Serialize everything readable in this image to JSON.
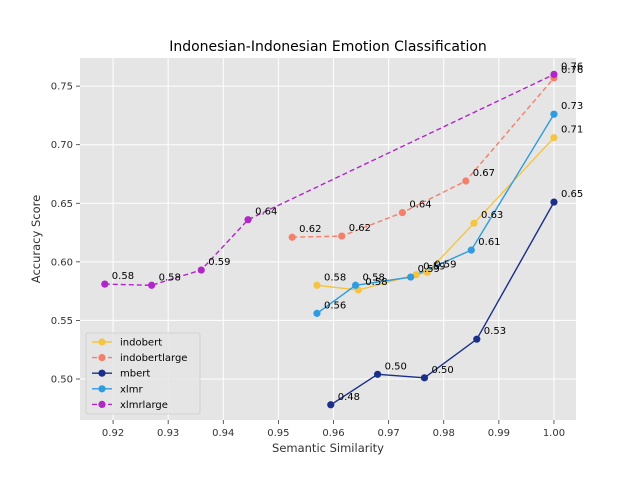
{
  "chart_data": {
    "type": "line",
    "title": "Indonesian-Indonesian Emotion Classification",
    "xlabel": "Semantic Similarity",
    "ylabel": "Accuracy Score",
    "xlim": [
      0.914,
      1.004
    ],
    "ylim": [
      0.465,
      0.774
    ],
    "xticks": [
      0.92,
      0.93,
      0.94,
      0.95,
      0.96,
      0.97,
      0.98,
      0.99,
      1.0
    ],
    "xtick_labels": [
      "0.92",
      "0.93",
      "0.94",
      "0.95",
      "0.96",
      "0.97",
      "0.98",
      "0.99",
      "1.00"
    ],
    "yticks": [
      0.5,
      0.55,
      0.6,
      0.65,
      0.7,
      0.75
    ],
    "ytick_labels": [
      "0.50",
      "0.55",
      "0.60",
      "0.65",
      "0.70",
      "0.75"
    ],
    "grid": true,
    "legend_position": "lower-left",
    "series": [
      {
        "name": "indobert",
        "color": "#f4c542",
        "dashed": false,
        "points": [
          {
            "x": 0.957,
            "y": 0.58,
            "label": "0.58"
          },
          {
            "x": 0.9645,
            "y": 0.576,
            "label": "0.58"
          },
          {
            "x": 0.975,
            "y": 0.589,
            "label": "0.59"
          },
          {
            "x": 0.977,
            "y": 0.591,
            "label": "0.59"
          },
          {
            "x": 0.9855,
            "y": 0.633,
            "label": "0.63"
          },
          {
            "x": 1.0,
            "y": 0.706,
            "label": "0.71"
          }
        ]
      },
      {
        "name": "indobertlarge",
        "color": "#f47f6b",
        "dashed": true,
        "points": [
          {
            "x": 0.9525,
            "y": 0.621,
            "label": "0.62"
          },
          {
            "x": 0.9615,
            "y": 0.622,
            "label": "0.62"
          },
          {
            "x": 0.9725,
            "y": 0.642,
            "label": "0.64"
          },
          {
            "x": 0.984,
            "y": 0.669,
            "label": "0.67"
          },
          {
            "x": 1.0,
            "y": 0.757,
            "label": "0.76"
          }
        ]
      },
      {
        "name": "mbert",
        "color": "#1b2f8a",
        "dashed": false,
        "points": [
          {
            "x": 0.9595,
            "y": 0.478,
            "label": "0.48"
          },
          {
            "x": 0.968,
            "y": 0.504,
            "label": "0.50"
          },
          {
            "x": 0.9765,
            "y": 0.501,
            "label": "0.50"
          },
          {
            "x": 0.986,
            "y": 0.534,
            "label": "0.53"
          },
          {
            "x": 1.0,
            "y": 0.651,
            "label": "0.65"
          }
        ]
      },
      {
        "name": "xlmr",
        "color": "#2f9be0",
        "dashed": false,
        "points": [
          {
            "x": 0.957,
            "y": 0.556,
            "label": "0.56"
          },
          {
            "x": 0.964,
            "y": 0.58,
            "label": "0.58"
          },
          {
            "x": 0.974,
            "y": 0.587,
            "label": "0.59"
          },
          {
            "x": 0.985,
            "y": 0.61,
            "label": "0.61"
          },
          {
            "x": 1.0,
            "y": 0.726,
            "label": "0.73"
          }
        ]
      },
      {
        "name": "xlmrlarge",
        "color": "#b026c9",
        "dashed": true,
        "points": [
          {
            "x": 0.9185,
            "y": 0.581,
            "label": "0.58"
          },
          {
            "x": 0.927,
            "y": 0.58,
            "label": "0.58"
          },
          {
            "x": 0.936,
            "y": 0.593,
            "label": "0.59"
          },
          {
            "x": 0.9445,
            "y": 0.636,
            "label": "0.64"
          },
          {
            "x": 1.0,
            "y": 0.76,
            "label": "0.76"
          }
        ]
      }
    ]
  }
}
